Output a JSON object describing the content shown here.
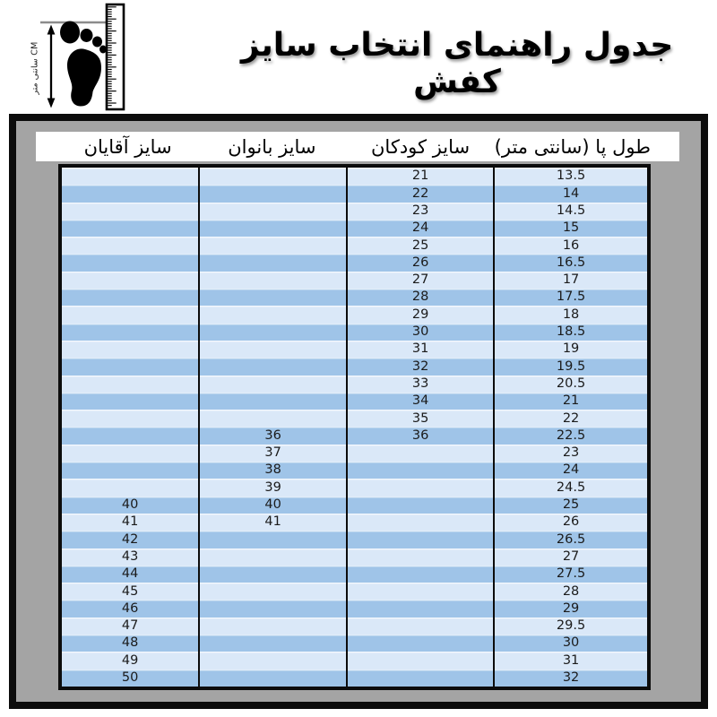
{
  "title": "جدول راهنمای انتخاب سایز کفش",
  "logo": {
    "label": "CM سانتی متر"
  },
  "chart_data": {
    "type": "table",
    "title": "جدول راهنمای انتخاب سایز کفش",
    "columns": [
      "طول پا (سانتی متر)",
      "سایز کودکان",
      "سایز بانوان",
      "سایز آقایان"
    ],
    "rows": [
      [
        "13.5",
        "21",
        "",
        ""
      ],
      [
        "14",
        "22",
        "",
        ""
      ],
      [
        "14.5",
        "23",
        "",
        ""
      ],
      [
        "15",
        "24",
        "",
        ""
      ],
      [
        "16",
        "25",
        "",
        ""
      ],
      [
        "16.5",
        "26",
        "",
        ""
      ],
      [
        "17",
        "27",
        "",
        ""
      ],
      [
        "17.5",
        "28",
        "",
        ""
      ],
      [
        "18",
        "29",
        "",
        ""
      ],
      [
        "18.5",
        "30",
        "",
        ""
      ],
      [
        "19",
        "31",
        "",
        ""
      ],
      [
        "19.5",
        "32",
        "",
        ""
      ],
      [
        "20.5",
        "33",
        "",
        ""
      ],
      [
        "21",
        "34",
        "",
        ""
      ],
      [
        "22",
        "35",
        "",
        ""
      ],
      [
        "22.5",
        "36",
        "36",
        ""
      ],
      [
        "23",
        "",
        "37",
        ""
      ],
      [
        "24",
        "",
        "38",
        ""
      ],
      [
        "24.5",
        "",
        "39",
        ""
      ],
      [
        "25",
        "",
        "40",
        "40"
      ],
      [
        "26",
        "",
        "41",
        "41"
      ],
      [
        "26.5",
        "",
        "",
        "42"
      ],
      [
        "27",
        "",
        "",
        "43"
      ],
      [
        "27.5",
        "",
        "",
        "44"
      ],
      [
        "28",
        "",
        "",
        "45"
      ],
      [
        "29",
        "",
        "",
        "46"
      ],
      [
        "29.5",
        "",
        "",
        "47"
      ],
      [
        "30",
        "",
        "",
        "48"
      ],
      [
        "31",
        "",
        "",
        "49"
      ],
      [
        "32",
        "",
        "",
        "50"
      ]
    ],
    "layout": {
      "column_order": "right-to-left",
      "banded_rows": true
    }
  },
  "colors": {
    "row_light": "#dae8f8",
    "row_dark": "#9fc4e8",
    "panel": "#a4a4a4",
    "frame": "#0c0c0c",
    "header_bg": "#ffffff"
  }
}
